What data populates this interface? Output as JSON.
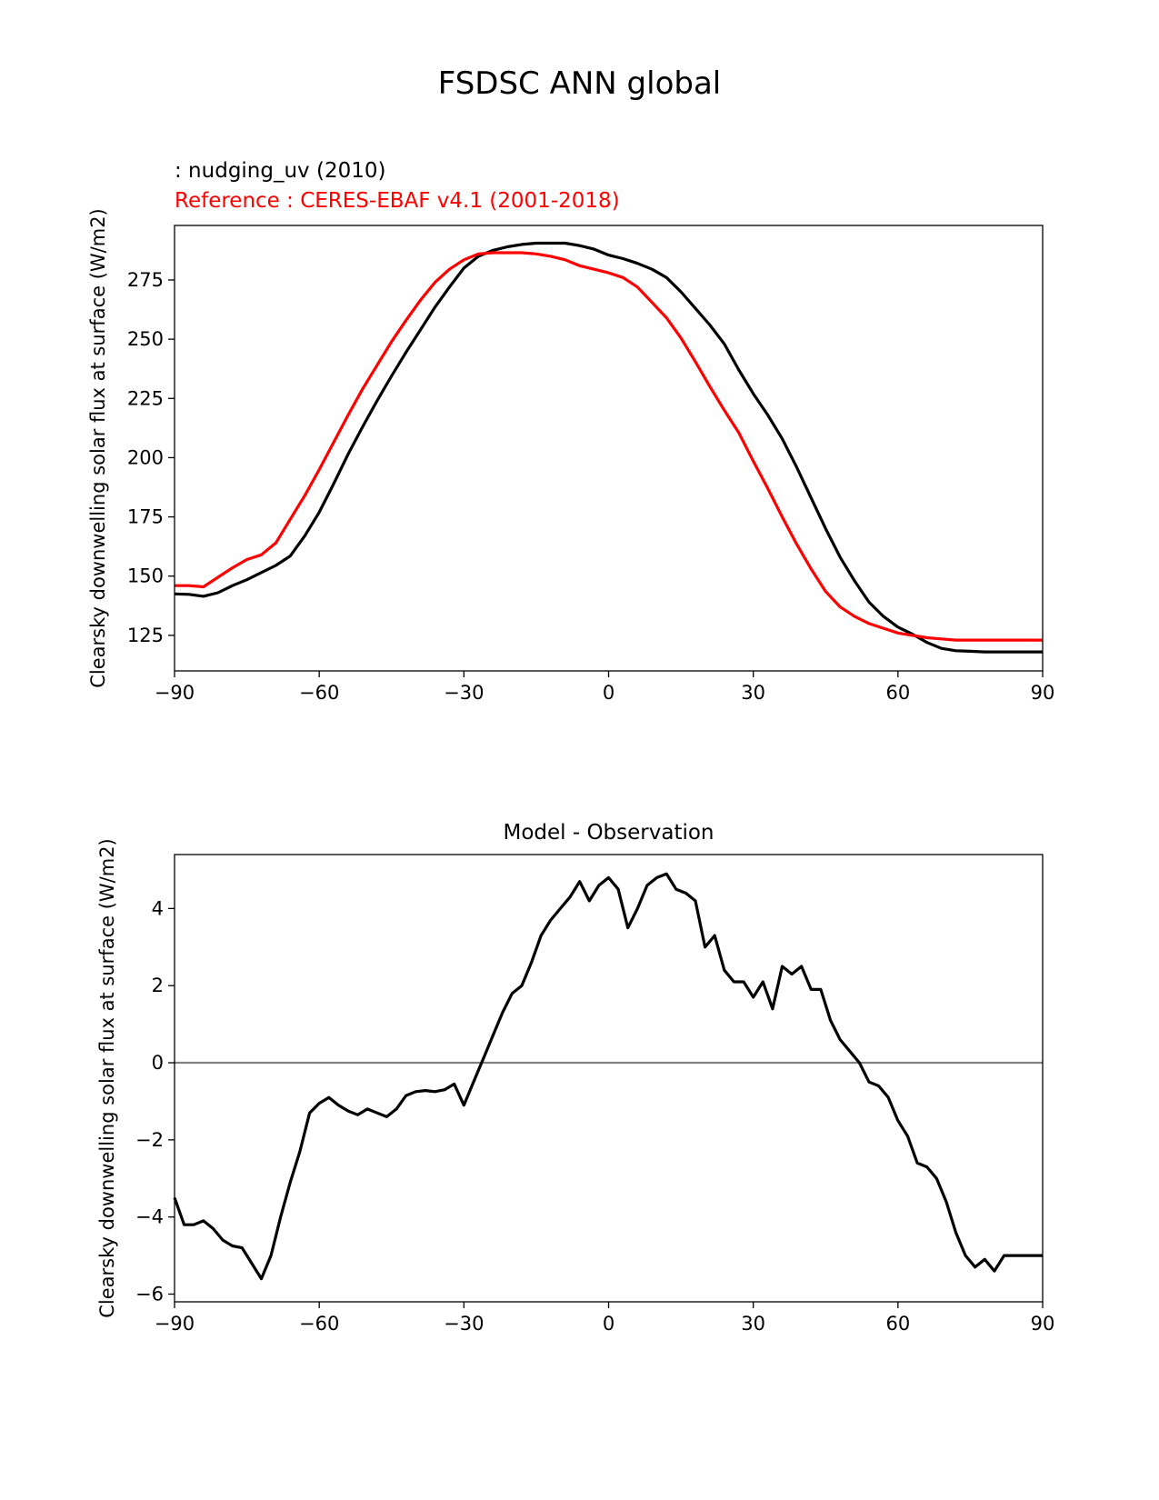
{
  "figure": {
    "title": "FSDSC ANN global"
  },
  "chart_data": [
    {
      "type": "line",
      "test_label": " : nudging_uv (2010)",
      "ref_label": "Reference : CERES-EBAF v4.1 (2001-2018)",
      "ylabel": "Clearsky downwelling solar flux at surface (W/m2)",
      "xlabel": "",
      "xlim": [
        -90,
        90
      ],
      "ylim": [
        110,
        298
      ],
      "xticks": [
        -90,
        -60,
        -30,
        0,
        30,
        60,
        90
      ],
      "yticks": [
        125,
        150,
        175,
        200,
        225,
        250,
        275
      ],
      "grid": false,
      "series": [
        {
          "color": "#000000",
          "x": [
            -90,
            -87,
            -84,
            -81,
            -78,
            -75,
            -72,
            -69,
            -66,
            -63,
            -60,
            -57,
            -54,
            -51,
            -48,
            -45,
            -42,
            -39,
            -36,
            -33,
            -30,
            -27,
            -24,
            -21,
            -18,
            -15,
            -12,
            -9,
            -6,
            -3,
            0,
            3,
            6,
            9,
            12,
            15,
            18,
            21,
            24,
            27,
            30,
            33,
            36,
            39,
            42,
            45,
            48,
            51,
            54,
            57,
            60,
            63,
            66,
            69,
            72,
            75,
            78,
            81,
            84,
            87,
            90
          ],
          "y": [
            142.5,
            142.3,
            141.5,
            143,
            146,
            148.5,
            151.5,
            154.5,
            158.5,
            167,
            177,
            189,
            201.5,
            213,
            224,
            234.5,
            244.5,
            254,
            263.5,
            272,
            280,
            285,
            287.5,
            289,
            290,
            290.5,
            290.5,
            290.5,
            289.5,
            288,
            285.5,
            284,
            282,
            279.5,
            276,
            270,
            263,
            256,
            248,
            237,
            227,
            218,
            208,
            196,
            183,
            170,
            158,
            148,
            139,
            133,
            128.5,
            125.5,
            122,
            119.5,
            118.5,
            118.3,
            118,
            118,
            118,
            118,
            118
          ]
        },
        {
          "color": "#ff0000",
          "x": [
            -90,
            -87,
            -84,
            -81,
            -78,
            -75,
            -72,
            -69,
            -66,
            -63,
            -60,
            -57,
            -54,
            -51,
            -48,
            -45,
            -42,
            -39,
            -36,
            -33,
            -30,
            -27,
            -24,
            -21,
            -18,
            -15,
            -12,
            -9,
            -6,
            -3,
            0,
            3,
            6,
            9,
            12,
            15,
            18,
            21,
            24,
            27,
            30,
            33,
            36,
            39,
            42,
            45,
            48,
            51,
            54,
            57,
            60,
            63,
            66,
            69,
            72,
            75,
            78,
            81,
            84,
            87,
            90
          ],
          "y": [
            146,
            146,
            145.5,
            149.5,
            153.5,
            157,
            159,
            164,
            174,
            184,
            195,
            206.5,
            218,
            229,
            239,
            249,
            258,
            266.5,
            274,
            279.5,
            283.5,
            286,
            286.5,
            286.5,
            286.5,
            286,
            285,
            283.5,
            281,
            279.5,
            278,
            276,
            272,
            265.5,
            259,
            250.5,
            240.5,
            230,
            220,
            210.5,
            198.5,
            187,
            175,
            163.5,
            153,
            143.5,
            137,
            133,
            130,
            128,
            126,
            125,
            124,
            123.5,
            123,
            123,
            123,
            123,
            123,
            123,
            123
          ]
        }
      ]
    },
    {
      "type": "line",
      "title": "Model - Observation",
      "ylabel": "Clearsky downwelling solar flux at surface (W/m2)",
      "xlabel": "",
      "xlim": [
        -90,
        90
      ],
      "ylim": [
        -6.2,
        5.4
      ],
      "xticks": [
        -90,
        -60,
        -30,
        0,
        30,
        60,
        90
      ],
      "yticks": [
        -6,
        -4,
        -2,
        0,
        2,
        4
      ],
      "grid": false,
      "zero_line": true,
      "series": [
        {
          "color": "#000000",
          "x": [
            -90,
            -88,
            -86,
            -84,
            -82,
            -80,
            -78,
            -76,
            -74,
            -72,
            -70,
            -68,
            -66,
            -64,
            -62,
            -60,
            -58,
            -56,
            -54,
            -52,
            -50,
            -48,
            -46,
            -44,
            -42,
            -40,
            -38,
            -36,
            -34,
            -32,
            -30,
            -28,
            -26,
            -24,
            -22,
            -20,
            -18,
            -16,
            -14,
            -12,
            -10,
            -8,
            -6,
            -4,
            -2,
            0,
            2,
            4,
            6,
            8,
            10,
            12,
            14,
            16,
            18,
            20,
            22,
            24,
            26,
            28,
            30,
            32,
            34,
            36,
            38,
            40,
            42,
            44,
            46,
            48,
            50,
            52,
            54,
            56,
            58,
            60,
            62,
            64,
            66,
            68,
            70,
            72,
            74,
            76,
            78,
            80,
            82,
            84,
            86,
            88,
            90
          ],
          "y": [
            -3.5,
            -4.2,
            -4.2,
            -4.1,
            -4.3,
            -4.6,
            -4.75,
            -4.8,
            -5.2,
            -5.6,
            -5.0,
            -4.0,
            -3.1,
            -2.3,
            -1.3,
            -1.05,
            -0.9,
            -1.1,
            -1.25,
            -1.35,
            -1.2,
            -1.3,
            -1.4,
            -1.2,
            -0.85,
            -0.75,
            -0.72,
            -0.75,
            -0.7,
            -0.55,
            -1.1,
            -0.5,
            0.1,
            0.7,
            1.3,
            1.8,
            2.0,
            2.6,
            3.3,
            3.7,
            4.0,
            4.3,
            4.7,
            4.2,
            4.6,
            4.8,
            4.5,
            3.5,
            4.0,
            4.6,
            4.8,
            4.9,
            4.5,
            4.4,
            4.2,
            3.0,
            3.3,
            2.4,
            2.1,
            2.1,
            1.7,
            2.1,
            1.4,
            2.5,
            2.3,
            2.5,
            1.9,
            1.9,
            1.1,
            0.6,
            0.3,
            0.0,
            -0.5,
            -0.6,
            -0.9,
            -1.5,
            -1.9,
            -2.6,
            -2.7,
            -3.0,
            -3.6,
            -4.4,
            -5.0,
            -5.3,
            -5.1,
            -5.4,
            -5.0,
            -5.0,
            -5.0,
            -5.0,
            -5.0
          ]
        }
      ]
    }
  ]
}
